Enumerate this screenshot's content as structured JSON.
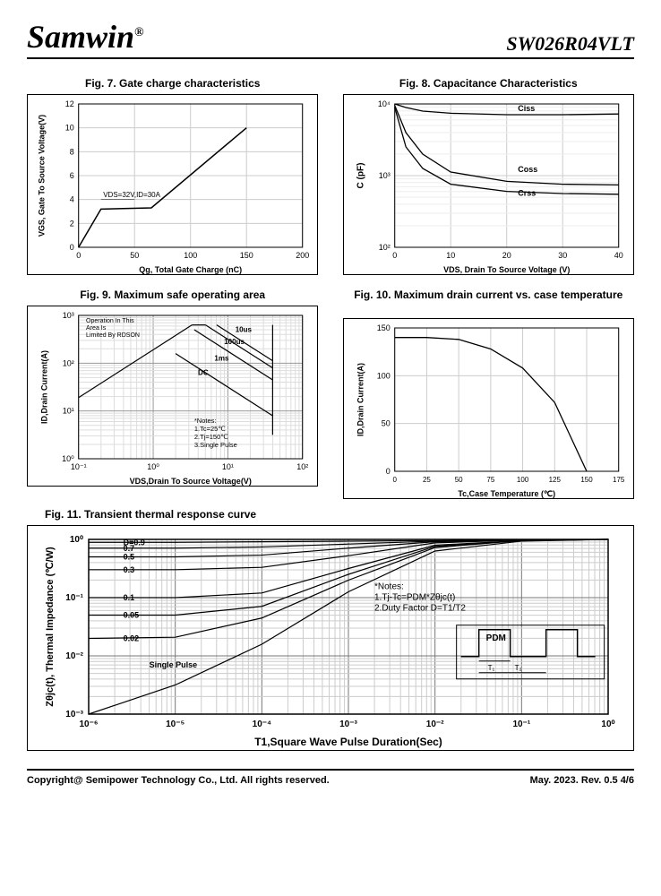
{
  "header": {
    "logo": "Samwin",
    "logo_sup": "®",
    "part": "SW026R04VLT"
  },
  "fig7": {
    "title": "Fig. 7. Gate charge characteristics",
    "ylabel": "VGS, Gate To Source Voltage(V)",
    "xlabel": "Qg, Total Gate Charge (nC)",
    "xticks": [
      0,
      50,
      100,
      150,
      200
    ],
    "yticks": [
      0,
      2,
      4,
      6,
      8,
      10,
      12
    ],
    "xlim": [
      0,
      200
    ],
    "ylim": [
      0,
      12
    ],
    "note": "VDS=32V,ID=30A",
    "points": [
      [
        0,
        0
      ],
      [
        20,
        3.2
      ],
      [
        65,
        3.3
      ],
      [
        150,
        10
      ]
    ],
    "grid": "#cccccc",
    "stroke": "#000000"
  },
  "fig8": {
    "title": "Fig. 8. Capacitance Characteristics",
    "ylabel": "C (pF)",
    "xlabel": "VDS, Drain To Source Voltage (V)",
    "xticks": [
      0,
      10,
      20,
      30,
      40
    ],
    "yticks": [
      100,
      1000,
      10000
    ],
    "ytick_labels": [
      "10²",
      "10³",
      "10⁴"
    ],
    "xlim": [
      0,
      40
    ],
    "ylim": [
      2,
      4
    ],
    "labels": [
      "Ciss",
      "Coss",
      "Crss"
    ],
    "ciss": [
      [
        0,
        4
      ],
      [
        2,
        3.95
      ],
      [
        5,
        3.9
      ],
      [
        10,
        3.87
      ],
      [
        20,
        3.85
      ],
      [
        30,
        3.85
      ],
      [
        40,
        3.86
      ]
    ],
    "coss": [
      [
        0,
        3.98
      ],
      [
        2,
        3.6
      ],
      [
        5,
        3.3
      ],
      [
        10,
        3.05
      ],
      [
        20,
        2.92
      ],
      [
        30,
        2.88
      ],
      [
        40,
        2.87
      ]
    ],
    "crss": [
      [
        0,
        3.95
      ],
      [
        2,
        3.4
      ],
      [
        5,
        3.1
      ],
      [
        10,
        2.88
      ],
      [
        20,
        2.78
      ],
      [
        30,
        2.75
      ],
      [
        40,
        2.74
      ]
    ],
    "grid": "#cccccc",
    "stroke": "#000000"
  },
  "fig9": {
    "title": "Fig. 9. Maximum safe operating area",
    "ylabel": "ID,Drain Current(A)",
    "xlabel": "VDS,Drain To Source Voltage(V)",
    "xticks": [
      "10⁻¹",
      "10⁰",
      "10¹",
      "10²"
    ],
    "yticks": [
      "10⁰",
      "10¹",
      "10²",
      "10³"
    ],
    "note_title": "Operation In This\nArea Is\nLimited By RDSON",
    "curve_labels": [
      "10us",
      "100us",
      "1ms",
      "DC"
    ],
    "notes": "*Notes:\n1.Tc=25℃\n2.Tj=150℃\n3.Single Pulse",
    "rdson": [
      [
        -1,
        1.28
      ],
      [
        0.52,
        2.8
      ]
    ],
    "limit_top": [
      [
        0.52,
        2.8
      ],
      [
        0.7,
        2.8
      ]
    ],
    "vline": [
      [
        1.6,
        2.8
      ],
      [
        1.6,
        0.5
      ]
    ],
    "dc": [
      [
        0.3,
        2.2
      ],
      [
        1.6,
        0.9
      ]
    ],
    "c1ms": [
      [
        0.55,
        2.7
      ],
      [
        1.6,
        1.65
      ]
    ],
    "c100us": [
      [
        0.7,
        2.8
      ],
      [
        1.6,
        1.9
      ]
    ],
    "c10us": [
      [
        0.85,
        2.8
      ],
      [
        1.6,
        2.05
      ]
    ],
    "grid": "#cccccc",
    "stroke": "#000000"
  },
  "fig10": {
    "title": "Fig. 10. Maximum drain current vs. case temperature",
    "ylabel": "ID,Drain Current(A)",
    "xlabel": "Tc,Case Temperature (℃)",
    "xticks": [
      0,
      25,
      50,
      75,
      100,
      125,
      150,
      175
    ],
    "yticks": [
      0,
      50,
      100,
      150
    ],
    "xlim": [
      0,
      175
    ],
    "ylim": [
      0,
      150
    ],
    "points": [
      [
        0,
        140
      ],
      [
        25,
        140
      ],
      [
        50,
        138
      ],
      [
        75,
        128
      ],
      [
        100,
        108
      ],
      [
        125,
        72
      ],
      [
        150,
        0
      ]
    ],
    "grid": "#cccccc",
    "stroke": "#000000"
  },
  "fig11": {
    "title": "Fig. 11. Transient thermal response curve",
    "ylabel": "Zθjc(t), Thermal Impedance (℃/W)",
    "xlabel": "T1,Square Wave Pulse Duration(Sec)",
    "xticks": [
      "10⁻⁶",
      "10⁻⁵",
      "10⁻⁴",
      "10⁻³",
      "10⁻²",
      "10⁻¹",
      "10⁰"
    ],
    "yticks": [
      "10⁻³",
      "10⁻²",
      "10⁻¹",
      "10⁰"
    ],
    "d_labels": [
      "D=0.9",
      "0.7",
      "0.5",
      "0.3",
      "0.1",
      "0.05",
      "0.02"
    ],
    "sp_label": "Single Pulse",
    "notes": "*Notes:\n1.Tj-Tc=PDM*Zθjc(t)\n2.Duty Factor D=T1/T2",
    "pdm_label": "PDM",
    "t1_label": "T₁",
    "t2_label": "T₂",
    "curves": {
      "d09": [
        [
          -6,
          -0.05
        ],
        [
          -5,
          -0.05
        ],
        [
          -4,
          -0.04
        ],
        [
          -3,
          -0.03
        ],
        [
          -2,
          -0.02
        ],
        [
          -1,
          -0.01
        ],
        [
          0,
          0
        ]
      ],
      "d07": [
        [
          -6,
          -0.15
        ],
        [
          -5,
          -0.15
        ],
        [
          -4,
          -0.13
        ],
        [
          -3,
          -0.08
        ],
        [
          -2,
          -0.03
        ],
        [
          -1,
          -0.01
        ],
        [
          0,
          0
        ]
      ],
      "d05": [
        [
          -6,
          -0.3
        ],
        [
          -5,
          -0.3
        ],
        [
          -4,
          -0.27
        ],
        [
          -3,
          -0.15
        ],
        [
          -2,
          -0.04
        ],
        [
          -1,
          -0.01
        ],
        [
          0,
          0
        ]
      ],
      "d03": [
        [
          -6,
          -0.52
        ],
        [
          -5,
          -0.52
        ],
        [
          -4,
          -0.48
        ],
        [
          -3,
          -0.28
        ],
        [
          -2,
          -0.06
        ],
        [
          -1,
          -0.01
        ],
        [
          0,
          0
        ]
      ],
      "d01": [
        [
          -6,
          -1
        ],
        [
          -5,
          -1
        ],
        [
          -4,
          -0.92
        ],
        [
          -3,
          -0.5
        ],
        [
          -2,
          -0.1
        ],
        [
          -1,
          -0.02
        ],
        [
          0,
          0
        ]
      ],
      "d005": [
        [
          -6,
          -1.3
        ],
        [
          -5,
          -1.3
        ],
        [
          -4,
          -1.15
        ],
        [
          -3,
          -0.6
        ],
        [
          -2,
          -0.12
        ],
        [
          -1,
          -0.02
        ],
        [
          0,
          0
        ]
      ],
      "d002": [
        [
          -6,
          -1.7
        ],
        [
          -5,
          -1.68
        ],
        [
          -4,
          -1.35
        ],
        [
          -3,
          -0.7
        ],
        [
          -2,
          -0.14
        ],
        [
          -1,
          -0.02
        ],
        [
          0,
          0
        ]
      ],
      "sp": [
        [
          -6,
          -3
        ],
        [
          -5,
          -2.5
        ],
        [
          -4,
          -1.8
        ],
        [
          -3,
          -0.9
        ],
        [
          -2,
          -0.2
        ],
        [
          -1,
          -0.03
        ],
        [
          0,
          0
        ]
      ]
    },
    "grid": "#999999",
    "stroke": "#000000"
  },
  "footer": {
    "left": "Copyright@ Semipower Technology Co., Ltd. All rights reserved.",
    "right": "May. 2023. Rev. 0.5    4/6"
  }
}
